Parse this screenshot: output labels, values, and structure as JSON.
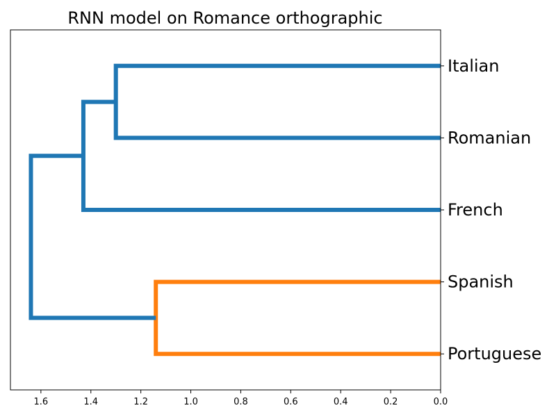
{
  "chart_data": {
    "type": "dendrogram",
    "title": "RNN model on Romance orthographic",
    "orientation": "left",
    "leaves": [
      "Italian",
      "Romanian",
      "French",
      "Spanish",
      "Portuguese"
    ],
    "merges": [
      {
        "left": "Italian",
        "right": "Romanian",
        "height": 1.3,
        "color": "#1f77b4"
      },
      {
        "left": "Italian+Romanian",
        "right": "French",
        "height": 1.43,
        "color": "#1f77b4"
      },
      {
        "left": "Spanish",
        "right": "Portuguese",
        "height": 1.14,
        "color": "#ff7f0e"
      },
      {
        "left": "Italian+Romanian+French",
        "right": "Spanish+Portuguese",
        "height": 1.64,
        "color": "#1f77b4"
      }
    ],
    "xlim": [
      1.722,
      0.0
    ],
    "xticks": [
      1.6,
      1.4,
      1.2,
      1.0,
      0.8,
      0.6,
      0.4,
      0.2,
      0.0
    ],
    "xtick_labels": [
      "1.6",
      "1.4",
      "1.2",
      "1.0",
      "0.8",
      "0.6",
      "0.4",
      "0.2",
      "0.0"
    ],
    "grid": false,
    "colors": {
      "cluster_1": "#1f77b4",
      "cluster_2": "#ff7f0e",
      "axis": "#000000"
    }
  }
}
